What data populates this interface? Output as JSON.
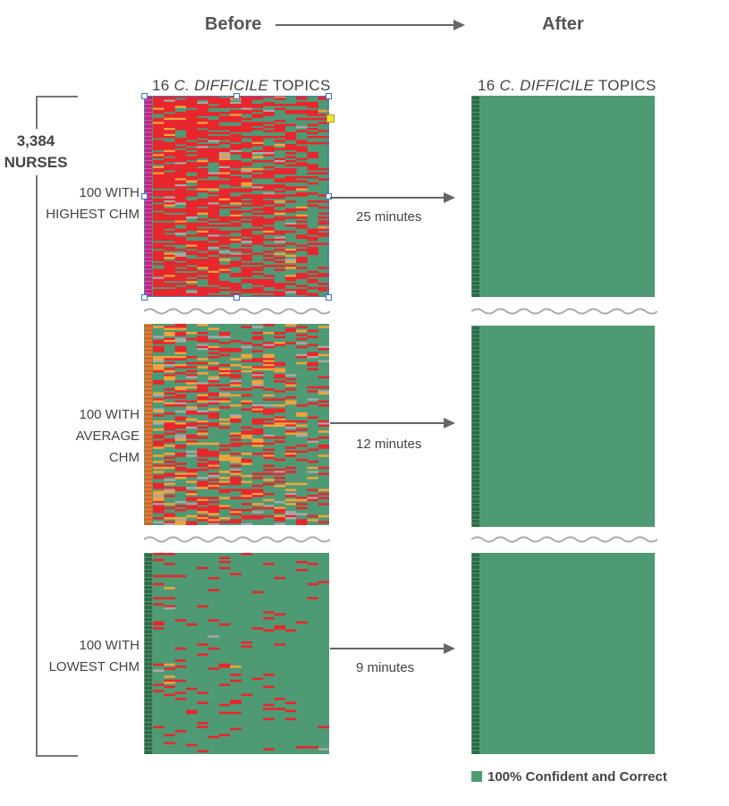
{
  "header": {
    "before": "Before",
    "after": "After"
  },
  "column_title": {
    "prefix": "16 ",
    "italic": "C. DIFFICILE",
    "suffix": " TOPICS"
  },
  "nurses": {
    "count": "3,384",
    "label": "NURSES"
  },
  "rows": [
    {
      "line1": "100 WITH",
      "line2": "HIGHEST CHM",
      "time": "25 minutes"
    },
    {
      "line1": "100 WITH",
      "line2": "AVERAGE CHM",
      "time": "12 minutes"
    },
    {
      "line1": "100 WITH",
      "line2": "LOWEST CHM",
      "time": "9 minutes"
    }
  ],
  "legend": {
    "label": "100% Confident and Correct",
    "color": "#4e9a74"
  },
  "colors": {
    "correct": "#4e9a74",
    "wrong": "#e8262e",
    "unsure": "#f0a33c",
    "unknown": "#a8a8a8",
    "strip_high": "#c0267e",
    "strip_avg": "#d9651f",
    "strip_low": "#2c6b47"
  },
  "density": {
    "highest_chm": 0.82,
    "average_chm": 0.55,
    "lowest_chm": 0.12
  }
}
